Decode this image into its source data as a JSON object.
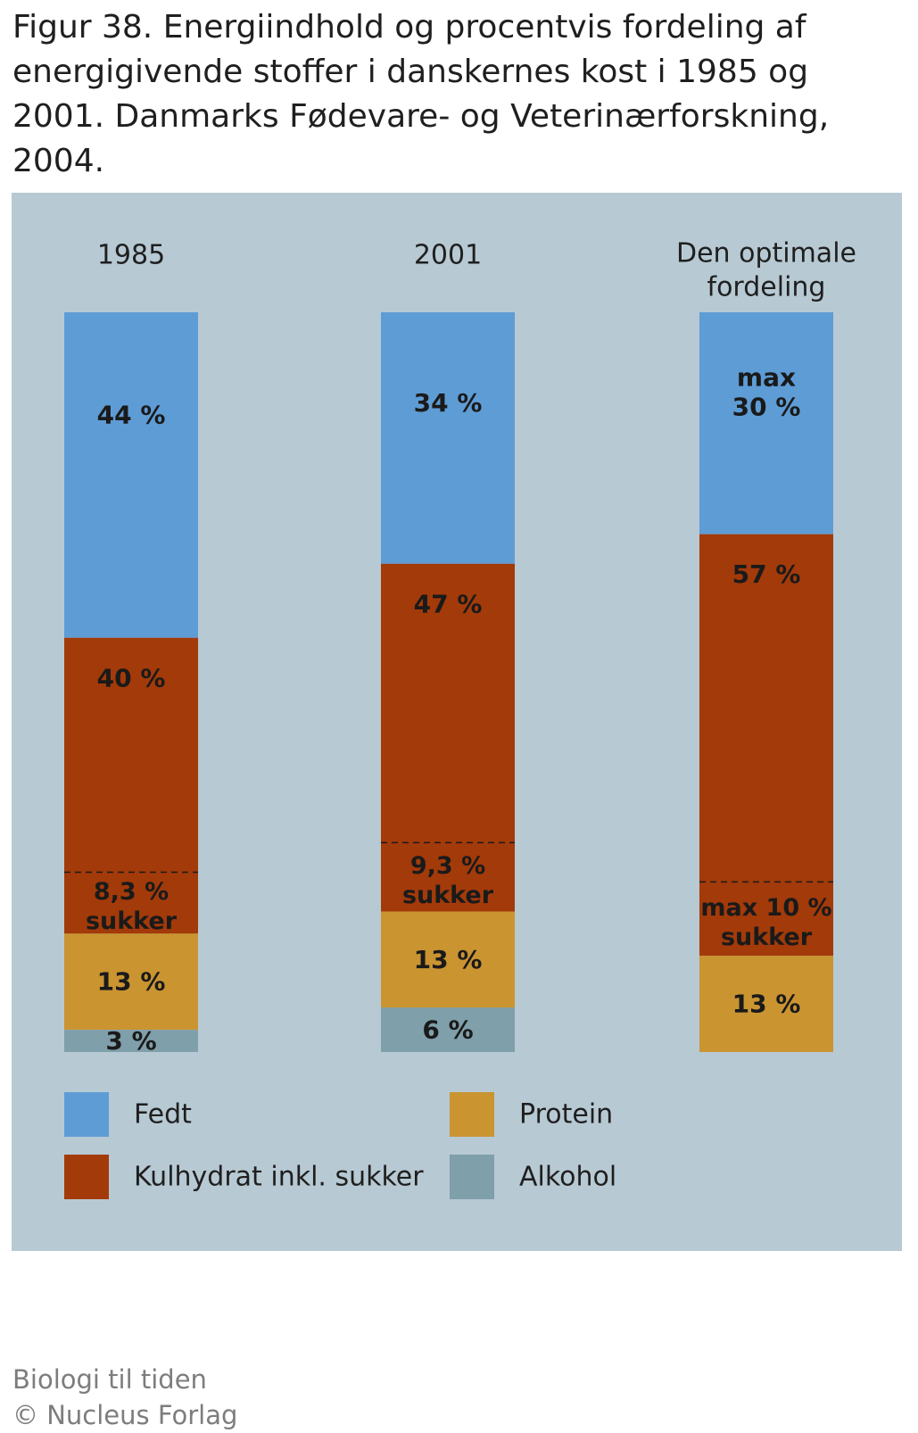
{
  "caption": {
    "line1": "Figur 38. Energiindhold og procentvis fordeling af",
    "line2": "energigivende stoffer i danskernes kost i 1985 og",
    "line3": "2001. Danmarks Fødevare- og Veterinærforskning, 2004."
  },
  "chart_data": {
    "type": "bar",
    "stacked": true,
    "unit": "%",
    "categories": [
      [
        "1985"
      ],
      [
        "2001"
      ],
      [
        "Den optimale",
        "fordeling"
      ]
    ],
    "series": [
      {
        "name": "Fedt",
        "color": "#5e9cd5",
        "values": [
          44,
          34,
          30
        ],
        "labels": [
          [
            "44 %"
          ],
          [
            "34 %"
          ],
          [
            "max",
            "30 %"
          ]
        ]
      },
      {
        "name": "Kulhydrat inkl. sukker",
        "color": "#a33a09",
        "values": [
          40,
          47,
          57
        ],
        "labels": [
          [
            "40 %"
          ],
          [
            "47 %"
          ],
          [
            "57 %"
          ]
        ]
      },
      {
        "name": "Protein",
        "color": "#ca9431",
        "values": [
          13,
          13,
          13
        ],
        "labels": [
          [
            "13 %"
          ],
          [
            "13 %"
          ],
          [
            "13 %"
          ]
        ]
      },
      {
        "name": "Alkohol",
        "color": "#7f9faa",
        "values": [
          3,
          6,
          0
        ],
        "labels": [
          [
            "3 %"
          ],
          [
            "6 %"
          ],
          []
        ]
      }
    ],
    "sugar": {
      "values": [
        8.3,
        9.3,
        10
      ],
      "labels": [
        [
          "8,3 %",
          "sukker"
        ],
        [
          "9,3 %",
          "sukker"
        ],
        [
          "max 10 %",
          "sukker"
        ]
      ]
    },
    "legend": "bottom",
    "grid": false
  },
  "footer": {
    "line1": "Biologi til tiden",
    "line2": "© Nucleus Forlag"
  }
}
